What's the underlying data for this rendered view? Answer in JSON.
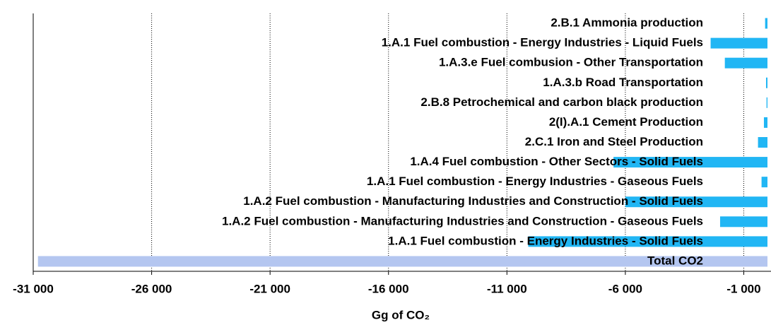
{
  "chart_data": {
    "type": "barh",
    "categories": [
      "2.B.1  Ammonia production",
      "1.A.1 Fuel combustion - Energy Industries - Liquid Fuels",
      "1.A.3.e Fuel combusion - Other Transportation",
      "1.A.3.b Road Transportation",
      "2.B.8 Petrochemical and carbon black production",
      "2(I).A.1 Cement Production",
      "2.C.1 Iron and Steel Production",
      "1.A.4 Fuel combustion - Other Sectors - Solid Fuels",
      "1.A.1 Fuel combustion - Energy Industries - Gaseous Fuels",
      "1.A.2 Fuel combustion - Manufacturing Industries and Construction - Solid Fuels",
      "1.A.2 Fuel combustion - Manufacturing Industries and Construction - Gaseous Fuels",
      "1.A.1 Fuel combustion - Energy Industries - Solid Fuels",
      "Total CO2"
    ],
    "values": [
      -100,
      -2400,
      -1800,
      -60,
      -40,
      -150,
      -400,
      -6500,
      -250,
      -6000,
      -2000,
      -10100,
      -30800
    ],
    "colors": [
      "#21b6f4",
      "#21b6f4",
      "#21b6f4",
      "#21b6f4",
      "#21b6f4",
      "#21b6f4",
      "#21b6f4",
      "#21b6f4",
      "#21b6f4",
      "#21b6f4",
      "#21b6f4",
      "#21b6f4",
      "#b4c6f0"
    ],
    "xlabel": "Gg of CO₂",
    "xlim": [
      -31000,
      0
    ],
    "xticks": [
      {
        "value": -31000,
        "label": "-31 000"
      },
      {
        "value": -26000,
        "label": "-26 000"
      },
      {
        "value": -21000,
        "label": "-21 000"
      },
      {
        "value": -16000,
        "label": "-16 000"
      },
      {
        "value": -11000,
        "label": "-11 000"
      },
      {
        "value": -6000,
        "label": "-6 000"
      },
      {
        "value": -1000,
        "label": "-1 000"
      }
    ],
    "grid": true
  }
}
